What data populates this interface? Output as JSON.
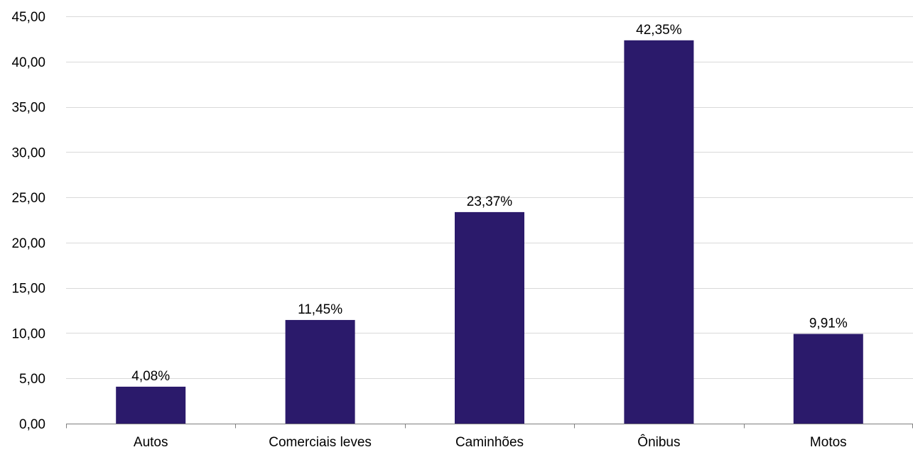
{
  "chart_data": {
    "type": "bar",
    "title": "",
    "xlabel": "",
    "ylabel": "",
    "categories": [
      "Autos",
      "Comerciais leves",
      "Caminhões",
      "Ônibus",
      "Motos"
    ],
    "values": [
      4.08,
      11.45,
      23.37,
      42.35,
      9.91
    ],
    "data_labels": [
      "4,08%",
      "11,45%",
      "23,37%",
      "42,35%",
      "9,91%"
    ],
    "ylim": [
      0,
      45
    ],
    "y_ticks": [
      0,
      5,
      10,
      15,
      20,
      25,
      30,
      35,
      40,
      45
    ],
    "y_tick_labels": [
      "0,00",
      "5,00",
      "10,00",
      "15,00",
      "20,00",
      "25,00",
      "30,00",
      "35,00",
      "40,00",
      "45,00"
    ],
    "grid": true,
    "legend": "none",
    "bar_color": "#2b1a6b"
  }
}
